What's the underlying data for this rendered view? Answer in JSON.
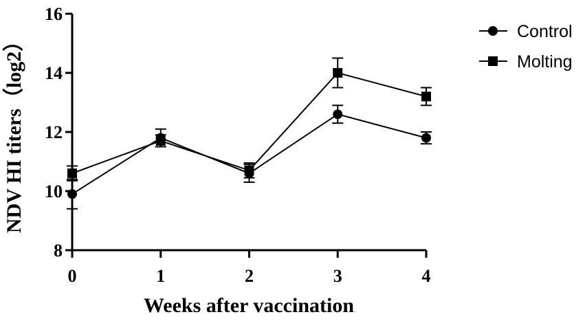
{
  "chart_data": {
    "type": "line",
    "title": "",
    "xlabel": "Weeks after vaccination",
    "ylabel": "NDV HI titers（log2）",
    "x": [
      0,
      1,
      2,
      3,
      4
    ],
    "xticks": [
      "0",
      "1",
      "2",
      "3",
      "4"
    ],
    "xlim": [
      0,
      4
    ],
    "ylim": [
      8,
      16
    ],
    "yticks": [
      "8",
      "10",
      "12",
      "14",
      "16"
    ],
    "grid": false,
    "legend_position": "top-right",
    "series": [
      {
        "name": "Control",
        "marker": "circle",
        "color": "#000000",
        "values": [
          9.9,
          11.8,
          10.6,
          12.6,
          11.8
        ],
        "errors": [
          0.5,
          0.3,
          0.3,
          0.3,
          0.2
        ]
      },
      {
        "name": "Molting",
        "marker": "square",
        "color": "#000000",
        "values": [
          10.6,
          11.7,
          10.7,
          14.0,
          13.2
        ],
        "errors": [
          0.25,
          0.2,
          0.25,
          0.5,
          0.3
        ]
      }
    ]
  }
}
